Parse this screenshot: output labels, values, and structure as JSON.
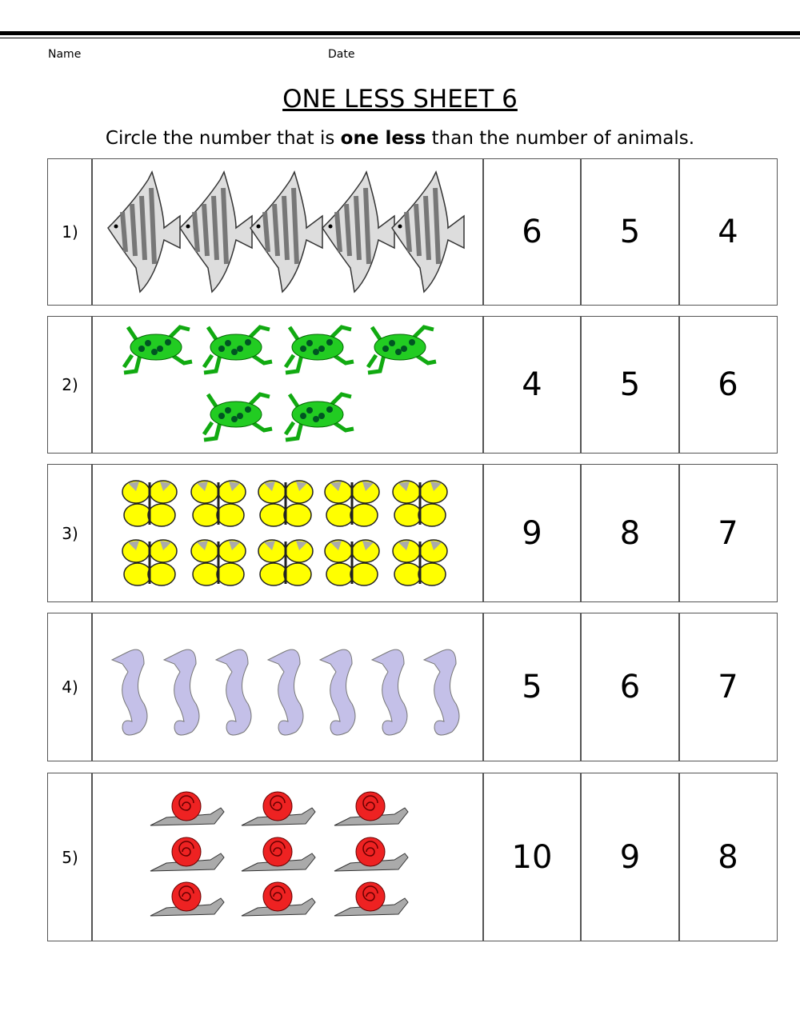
{
  "header": {
    "name_label": "Name",
    "date_label": "Date"
  },
  "title": "ONE LESS SHEET 6",
  "instruction": {
    "before": "Circle the number that is ",
    "bold": "one less",
    "after": " than the number of animals."
  },
  "rows": [
    {
      "label": "1)",
      "options": [
        "6",
        "5",
        "4"
      ]
    },
    {
      "label": "2)",
      "options": [
        "4",
        "5",
        "6"
      ]
    },
    {
      "label": "3)",
      "options": [
        "9",
        "8",
        "7"
      ]
    },
    {
      "label": "4)",
      "options": [
        "5",
        "6",
        "7"
      ]
    },
    {
      "label": "5)",
      "options": [
        "10",
        "9",
        "8"
      ]
    }
  ]
}
